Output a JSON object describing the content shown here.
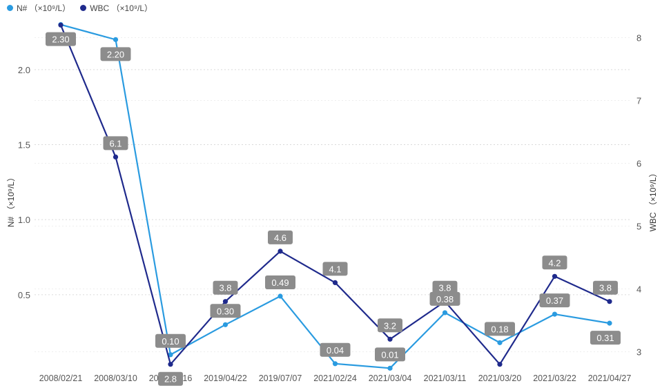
{
  "chart_data": {
    "type": "line",
    "categories": [
      "2008/02/21",
      "2008/03/10",
      "2019/04/16",
      "2019/04/22",
      "2019/07/07",
      "2021/02/24",
      "2021/03/04",
      "2021/03/11",
      "2021/03/20",
      "2021/03/22",
      "2021/04/27"
    ],
    "legend": [
      {
        "label": "N# （×10⁹/L）",
        "color": "#2a9be0"
      },
      {
        "label": "WBC （×10⁹/L）",
        "color": "#1f2a8c"
      }
    ],
    "series": [
      {
        "name": "N#",
        "axis": "left",
        "color": "#2a9be0",
        "values": [
          2.3,
          2.2,
          0.1,
          0.3,
          0.49,
          0.04,
          0.01,
          0.38,
          0.18,
          0.37,
          0.31
        ],
        "labels": [
          "2.30",
          "2.20",
          "0.10",
          "0.30",
          "0.49",
          "0.04",
          "0.01",
          "0.38",
          "0.18",
          "0.37",
          "0.31"
        ]
      },
      {
        "name": "WBC",
        "axis": "right",
        "color": "#1f2a8c",
        "values": [
          8.2,
          6.1,
          2.8,
          3.8,
          4.6,
          4.1,
          3.2,
          3.8,
          2.8,
          4.2,
          3.8
        ],
        "labels": [
          "",
          "6.1",
          "2.8",
          "3.8",
          "4.6",
          "4.1",
          "3.2",
          "3.8",
          "",
          "4.2",
          "3.8"
        ]
      }
    ],
    "left_axis": {
      "label": "N# （×10⁹/L）",
      "ticks": [
        "0.5",
        "1.0",
        "1.5",
        "2.0"
      ],
      "range": [
        0,
        2.35
      ]
    },
    "right_axis": {
      "label": "WBC （×10⁹/L）",
      "ticks": [
        "3",
        "4",
        "5",
        "6",
        "7",
        "8"
      ],
      "range": [
        2.85,
        8.4
      ]
    },
    "grid": true
  }
}
